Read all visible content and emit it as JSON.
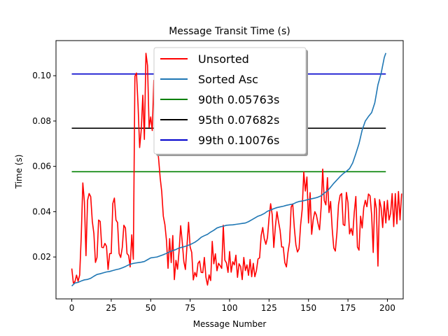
{
  "chart_data": {
    "type": "line",
    "title": "Message Transit Time (s)",
    "xlabel": "Message Number",
    "ylabel": "Time (s)",
    "xlim": [
      -10,
      210
    ],
    "ylim": [
      0.0015,
      0.1155
    ],
    "xticks": [
      0,
      25,
      50,
      75,
      100,
      125,
      150,
      175,
      200
    ],
    "yticks": [
      0.02,
      0.04,
      0.06,
      0.08,
      0.1
    ],
    "ytick_labels": [
      "0.02",
      "0.04",
      "0.06",
      "0.08",
      "0.10"
    ],
    "grid": false,
    "legend_position": "top-center",
    "series": [
      {
        "name": "Unsorted",
        "color": "#ff0000",
        "x_start": 0,
        "values": [
          0.0149,
          0.0085,
          0.0091,
          0.012,
          0.0093,
          0.012,
          0.029,
          0.0527,
          0.0444,
          0.0206,
          0.045,
          0.048,
          0.0466,
          0.0358,
          0.0304,
          0.0176,
          0.0198,
          0.0363,
          0.0357,
          0.0243,
          0.0241,
          0.026,
          0.0247,
          0.0145,
          0.0215,
          0.0215,
          0.0436,
          0.046,
          0.0363,
          0.0352,
          0.0215,
          0.0198,
          0.0242,
          0.034,
          0.0328,
          0.0215,
          0.0207,
          0.0156,
          0.0298,
          0.019,
          0.0998,
          0.1012,
          0.0869,
          0.0683,
          0.0759,
          0.0914,
          0.0719,
          0.1099,
          0.1045,
          0.0772,
          0.0818,
          0.0758,
          0.098,
          0.0784,
          0.07,
          0.0635,
          0.055,
          0.0488,
          0.038,
          0.0343,
          0.0273,
          0.015,
          0.0281,
          0.0175,
          0.0295,
          0.01,
          0.0185,
          0.0146,
          0.0226,
          0.0338,
          0.0266,
          0.018,
          0.0145,
          0.025,
          0.0353,
          0.0244,
          0.022,
          0.0099,
          0.0132,
          0.0113,
          0.0172,
          0.0182,
          0.0132,
          0.0131,
          0.0198,
          0.0111,
          0.0076,
          0.0121,
          0.0096,
          0.0269,
          0.017,
          0.0214,
          0.0139,
          0.0172,
          0.0162,
          0.015,
          0.034,
          0.0186,
          0.0174,
          0.0132,
          0.0224,
          0.0133,
          0.0179,
          0.0165,
          0.0208,
          0.011,
          0.017,
          0.0157,
          0.01,
          0.0198,
          0.014,
          0.0165,
          0.0119,
          0.0189,
          0.0113,
          0.0172,
          0.0113,
          0.014,
          0.0191,
          0.0196,
          0.0294,
          0.033,
          0.028,
          0.0256,
          0.0286,
          0.0372,
          0.0435,
          0.0386,
          0.0242,
          0.0333,
          0.04,
          0.0356,
          0.0317,
          0.0244,
          0.0244,
          0.0175,
          0.0156,
          0.0221,
          0.0266,
          0.042,
          0.0434,
          0.033,
          0.0254,
          0.0222,
          0.0236,
          0.0341,
          0.041,
          0.0575,
          0.0491,
          0.0553,
          0.035,
          0.0484,
          0.03,
          0.0365,
          0.04,
          0.0385,
          0.0348,
          0.032,
          0.0419,
          0.0588,
          0.0449,
          0.043,
          0.055,
          0.0396,
          0.0445,
          0.0325,
          0.024,
          0.0226,
          0.0306,
          0.043,
          0.0472,
          0.048,
          0.0343,
          0.0339,
          0.0485,
          0.044,
          0.0302,
          0.0326,
          0.0296,
          0.0397,
          0.0467,
          0.0244,
          0.023,
          0.038,
          0.0328,
          0.0418,
          0.045,
          0.0422,
          0.0478,
          0.047,
          0.0386,
          0.022,
          0.0458,
          0.0413,
          0.016,
          0.0453,
          0.0418,
          0.033,
          0.0445,
          0.035,
          0.045,
          0.0363,
          0.0392,
          0.048,
          0.0334,
          0.048,
          0.0346,
          0.0489,
          0.0364,
          0.048
        ]
      },
      {
        "name": "Sorted Asc",
        "color": "#1f77b4",
        "x": [
          0,
          2,
          4,
          6,
          8,
          10,
          12,
          14,
          16,
          18,
          20,
          22,
          24,
          26,
          28,
          30,
          32,
          34,
          36,
          38,
          40,
          42,
          44,
          46,
          48,
          50,
          52,
          54,
          56,
          58,
          60,
          62,
          64,
          66,
          68,
          70,
          72,
          74,
          76,
          78,
          80,
          82,
          84,
          86,
          88,
          90,
          92,
          94,
          96,
          98,
          100,
          102,
          104,
          106,
          108,
          110,
          112,
          114,
          116,
          118,
          120,
          122,
          124,
          126,
          128,
          130,
          132,
          134,
          136,
          138,
          140,
          142,
          144,
          146,
          148,
          150,
          152,
          154,
          156,
          158,
          160,
          162,
          164,
          166,
          168,
          170,
          172,
          174,
          176,
          178,
          180,
          182,
          184,
          186,
          188,
          190,
          192,
          194,
          196,
          198,
          199
        ],
        "values": [
          0.0072,
          0.0085,
          0.0088,
          0.0094,
          0.0099,
          0.0101,
          0.0106,
          0.0115,
          0.0123,
          0.0126,
          0.013,
          0.0134,
          0.0136,
          0.014,
          0.0144,
          0.0147,
          0.0152,
          0.0158,
          0.0165,
          0.017,
          0.0173,
          0.0175,
          0.0177,
          0.018,
          0.0188,
          0.0196,
          0.0198,
          0.02,
          0.0205,
          0.021,
          0.0216,
          0.0223,
          0.0228,
          0.0233,
          0.024,
          0.0243,
          0.0247,
          0.0252,
          0.0258,
          0.0265,
          0.0275,
          0.0287,
          0.0294,
          0.03,
          0.031,
          0.0318,
          0.0328,
          0.0333,
          0.0336,
          0.034,
          0.0341,
          0.0342,
          0.0344,
          0.0346,
          0.0348,
          0.035,
          0.0356,
          0.0364,
          0.0372,
          0.038,
          0.0385,
          0.0392,
          0.0402,
          0.0407,
          0.0413,
          0.0418,
          0.0421,
          0.0424,
          0.0428,
          0.0431,
          0.0433,
          0.044,
          0.0445,
          0.0447,
          0.045,
          0.0454,
          0.0457,
          0.046,
          0.0464,
          0.047,
          0.0482,
          0.0492,
          0.0508,
          0.0525,
          0.054,
          0.0555,
          0.0568,
          0.0578,
          0.059,
          0.0615,
          0.0656,
          0.07,
          0.076,
          0.08,
          0.082,
          0.0837,
          0.088,
          0.096,
          0.101,
          0.108,
          0.11
        ]
      },
      {
        "name": "90th 0.05763s",
        "color": "#008000",
        "hline": 0.05763,
        "x_range": [
          0,
          199
        ]
      },
      {
        "name": "95th 0.07682s",
        "color": "#000000",
        "hline": 0.07682,
        "x_range": [
          0,
          199
        ]
      },
      {
        "name": "99th 0.10076s",
        "color": "#0000cc",
        "hline": 0.10076,
        "x_range": [
          0,
          199
        ]
      }
    ]
  }
}
